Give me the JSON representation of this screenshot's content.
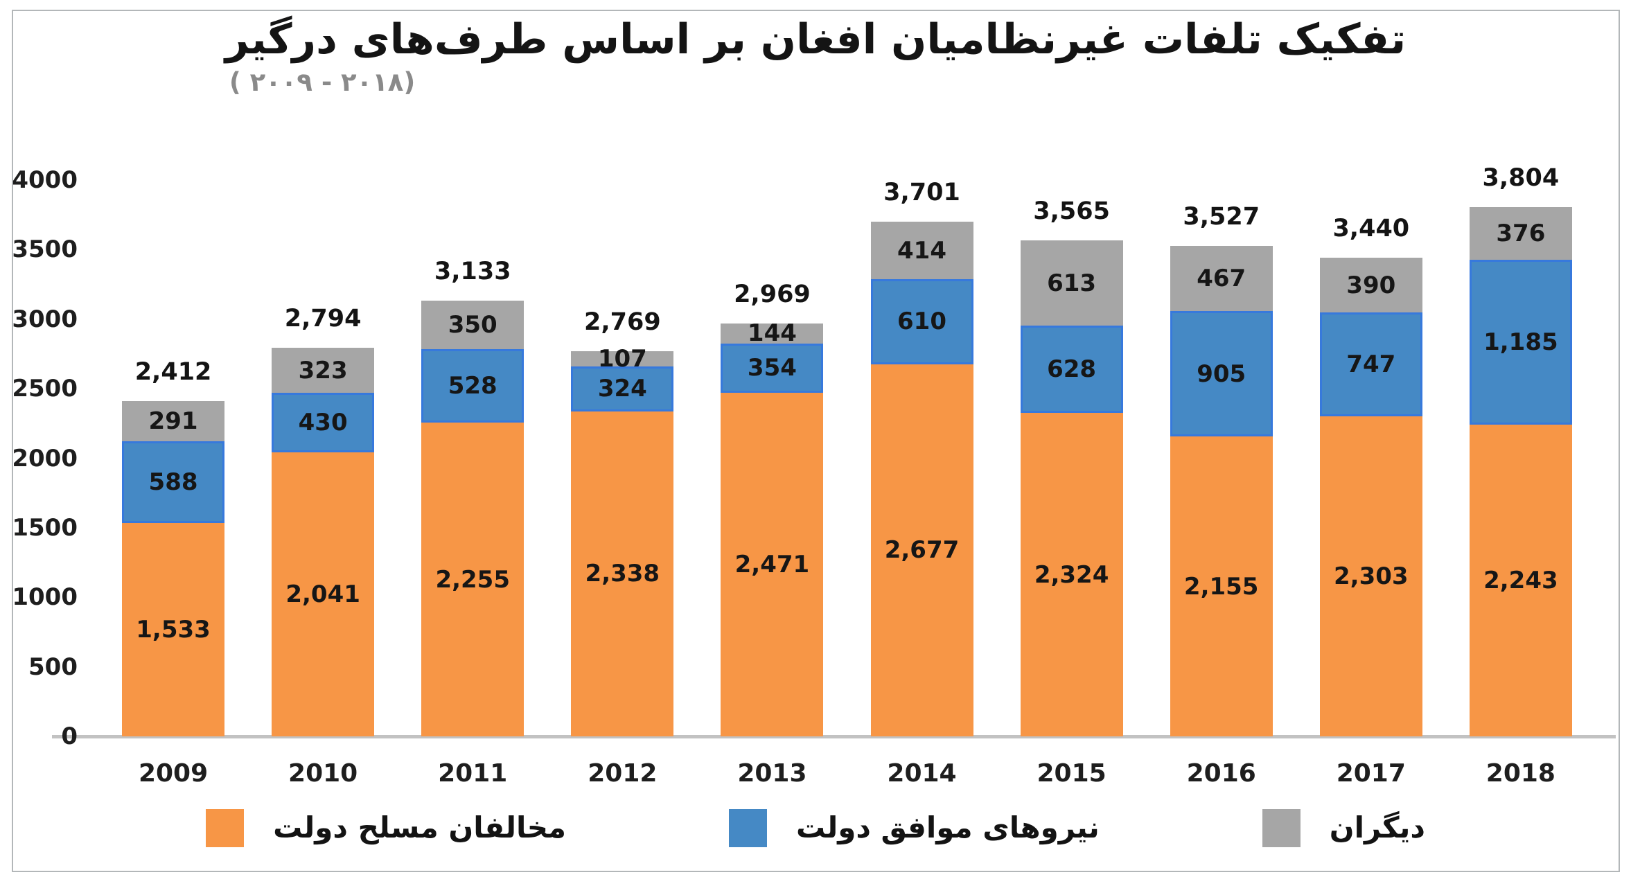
{
  "chart_data": {
    "type": "stacked-bar",
    "title": "تفکیک تلفات غیرنظامیان افغان بر اساس طرف‌های درگیر",
    "subtitle": "( ۲۰۰۹ - ۲۰۱۸)",
    "categories": [
      "2009",
      "2010",
      "2011",
      "2012",
      "2013",
      "2014",
      "2015",
      "2016",
      "2017",
      "2018"
    ],
    "series": [
      {
        "key": "armed-opposition",
        "name": "مخالفان مسلح دولت",
        "color": "#F79646",
        "values": [
          1533,
          2041,
          2255,
          2338,
          2471,
          2677,
          2324,
          2155,
          2303,
          2243
        ]
      },
      {
        "key": "pro-government-forces",
        "name": "نیروهای موافق دولت",
        "color": "#4589C5",
        "border_color": "#3779DC",
        "values": [
          588,
          430,
          528,
          324,
          354,
          610,
          628,
          905,
          747,
          1185
        ]
      },
      {
        "key": "others",
        "name": "دیگران",
        "color": "#A6A6A6",
        "values": [
          291,
          323,
          350,
          107,
          144,
          414,
          613,
          467,
          390,
          376
        ]
      }
    ],
    "totals": [
      2412,
      2794,
      3133,
      2769,
      2969,
      3701,
      3565,
      3527,
      3440,
      3804
    ],
    "y_axis": {
      "ticks": [
        0,
        500,
        1000,
        1500,
        2000,
        2500,
        3000,
        3500,
        4000
      ],
      "max": 4000
    },
    "xlabel": "",
    "ylabel": "",
    "grid": "off",
    "legend_position": "bottom",
    "colors": {
      "axis_line": "#C2C2C2",
      "title_text": "#141414",
      "subtitle_text": "#8A8A8A",
      "label_text": "#161616",
      "frame_border": "#B3B7B9"
    }
  }
}
